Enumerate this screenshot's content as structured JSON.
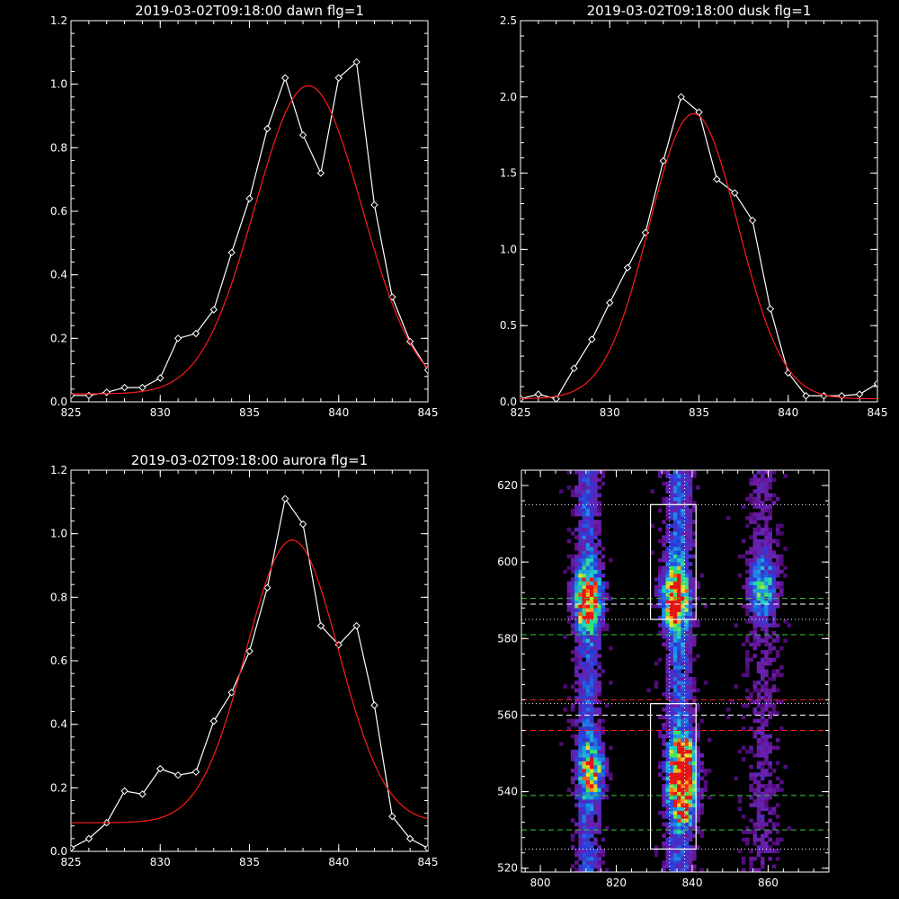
{
  "colors": {
    "background": "#000000",
    "axes": "#ffffff",
    "data": "#ffffff",
    "fit": "#ff1a1a"
  },
  "chart_data": [
    {
      "type": "line",
      "title": "2019-03-02T09:18:00 dawn flg=1",
      "xlim": [
        825,
        845
      ],
      "ylim": [
        0,
        1.2
      ],
      "xticks": [
        "825",
        "830",
        "835",
        "840",
        "845"
      ],
      "yticks": [
        "0.0",
        "0.2",
        "0.4",
        "0.6",
        "0.8",
        "1.0",
        "1.2"
      ],
      "series": [
        {
          "x": [
            825,
            826,
            827,
            828,
            829,
            830,
            831,
            832,
            833,
            834,
            835,
            836,
            837,
            838,
            839,
            840,
            841,
            842,
            843,
            844,
            845
          ],
          "y": [
            0.02,
            0.02,
            0.03,
            0.045,
            0.045,
            0.075,
            0.2,
            0.215,
            0.29,
            0.47,
            0.64,
            0.86,
            1.02,
            0.84,
            0.72,
            1.02,
            1.07,
            0.62,
            0.33,
            0.19,
            0.1
          ],
          "marker": "diamond",
          "color": "#ffffff"
        },
        {
          "model": "gauss",
          "amp": 0.97,
          "center": 838.3,
          "sigma": 3.0,
          "offset": 0.025,
          "color": "#ff1a1a"
        }
      ]
    },
    {
      "type": "line",
      "title": "2019-03-02T09:18:00 dusk flg=1",
      "xlim": [
        825,
        845
      ],
      "ylim": [
        0,
        2.5
      ],
      "xticks": [
        "825",
        "830",
        "835",
        "840",
        "845"
      ],
      "yticks": [
        "0.0",
        "0.5",
        "1.0",
        "1.5",
        "2.0",
        "2.5"
      ],
      "series": [
        {
          "x": [
            825,
            826,
            827,
            828,
            829,
            830,
            831,
            832,
            833,
            834,
            835,
            836,
            837,
            838,
            839,
            840,
            841,
            842,
            843,
            844,
            845
          ],
          "y": [
            0.02,
            0.05,
            0.02,
            0.22,
            0.41,
            0.65,
            0.88,
            1.11,
            1.58,
            2.0,
            1.9,
            1.46,
            1.37,
            1.19,
            0.61,
            0.19,
            0.04,
            0.04,
            0.04,
            0.05,
            0.12
          ],
          "marker": "diamond",
          "color": "#ffffff"
        },
        {
          "model": "gauss",
          "amp": 1.87,
          "center": 834.7,
          "sigma": 2.5,
          "offset": 0.02,
          "color": "#ff1a1a"
        }
      ]
    },
    {
      "type": "line",
      "title": "2019-03-02T09:18:00 aurora flg=1",
      "xlim": [
        825,
        845
      ],
      "ylim": [
        0,
        1.2
      ],
      "xticks": [
        "825",
        "830",
        "835",
        "840",
        "845"
      ],
      "yticks": [
        "0.0",
        "0.2",
        "0.4",
        "0.6",
        "0.8",
        "1.0",
        "1.2"
      ],
      "series": [
        {
          "x": [
            825,
            826,
            827,
            828,
            829,
            830,
            831,
            832,
            833,
            834,
            835,
            836,
            837,
            838,
            839,
            840,
            841,
            842,
            843,
            844,
            845
          ],
          "y": [
            0.01,
            0.04,
            0.09,
            0.19,
            0.18,
            0.26,
            0.24,
            0.25,
            0.41,
            0.5,
            0.63,
            0.83,
            1.11,
            1.03,
            0.71,
            0.65,
            0.71,
            0.46,
            0.11,
            0.04,
            0.01
          ],
          "marker": "diamond",
          "color": "#ffffff"
        },
        {
          "model": "gauss",
          "amp": 0.89,
          "center": 837.4,
          "sigma": 2.6,
          "offset": 0.09,
          "color": "#ff1a1a"
        }
      ]
    },
    {
      "type": "heatmap",
      "xlim": [
        795,
        876
      ],
      "ylim": [
        519,
        624
      ],
      "xticks": [
        "800",
        "820",
        "840",
        "860"
      ],
      "yticks": [
        "520",
        "540",
        "560",
        "580",
        "600",
        "620"
      ],
      "colormap": "rainbow",
      "emission_blobs": [
        {
          "x": 812,
          "y": 590,
          "peak": 1.0
        },
        {
          "x": 813,
          "y": 545,
          "peak": 0.6
        },
        {
          "x": 835,
          "y": 590,
          "peak": 1.0
        },
        {
          "x": 837,
          "y": 547,
          "peak": 0.9
        },
        {
          "x": 837,
          "y": 539,
          "peak": 0.95
        },
        {
          "x": 858,
          "y": 593,
          "peak": 0.5
        }
      ],
      "boxes": [
        {
          "x": [
            829,
            841
          ],
          "y": [
            585,
            615
          ]
        },
        {
          "x": [
            829,
            841
          ],
          "y": [
            525,
            563
          ]
        }
      ],
      "dotted_vertical": [
        834,
        838
      ],
      "dotted_horizontal": [
        525,
        563,
        585,
        615
      ],
      "dashed_lines": [
        {
          "y": 589,
          "color": "#ffffff"
        },
        {
          "y": 560,
          "color": "#ffffff"
        },
        {
          "y": 590.5,
          "color": "#33cc33"
        },
        {
          "y": 581,
          "color": "#33cc33"
        },
        {
          "y": 539,
          "color": "#33cc33"
        },
        {
          "y": 530,
          "color": "#33cc33"
        },
        {
          "y": 564,
          "color": "#ff1a1a"
        },
        {
          "y": 556,
          "color": "#ff1a1a"
        }
      ]
    }
  ]
}
